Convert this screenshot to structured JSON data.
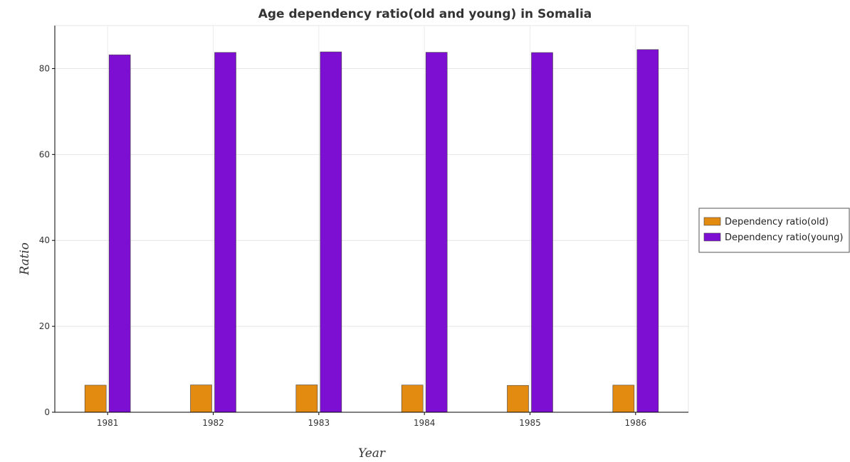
{
  "chart_data": {
    "type": "bar",
    "title": "Age dependency ratio(old and young) in Somalia",
    "xlabel": "Year",
    "ylabel": "Ratio",
    "categories": [
      "1981",
      "1982",
      "1983",
      "1984",
      "1985",
      "1986"
    ],
    "series": [
      {
        "name": "Dependency ratio(old)",
        "color": "#e38a11",
        "values": [
          6.3,
          6.36,
          6.37,
          6.33,
          6.25,
          6.31
        ]
      },
      {
        "name": "Dependency ratio(young)",
        "color": "#7d0fd3",
        "values": [
          83.2,
          83.75,
          83.88,
          83.78,
          83.72,
          84.42
        ]
      }
    ],
    "ylim": [
      0,
      90
    ],
    "yticks": [
      0,
      20,
      40,
      60,
      80
    ],
    "grid": true,
    "legend_position": "right"
  }
}
